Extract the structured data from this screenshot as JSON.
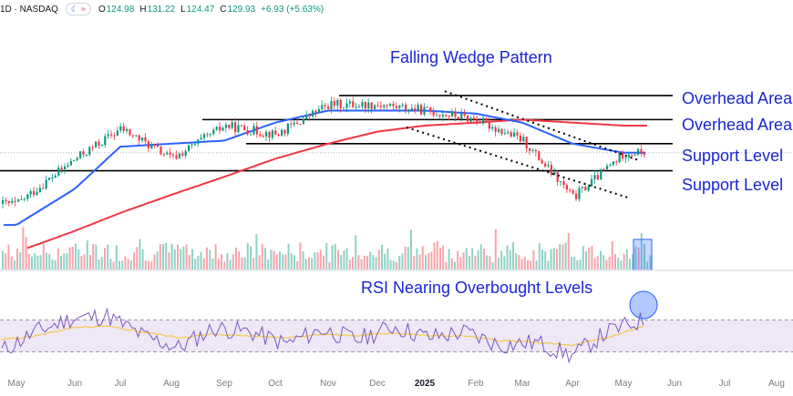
{
  "header": {
    "symbol": "1D · NASDAQ",
    "open_label": "O",
    "open": "124.98",
    "high_label": "H",
    "high": "131.22",
    "low_label": "L",
    "low": "124.47",
    "close_label": "C",
    "close": "129.93",
    "change": "+6.93 (+5.63%)",
    "toggle_icon_1": "moon-icon",
    "toggle_icon_2": "wave-icon"
  },
  "colors": {
    "up": "#089981",
    "down": "#f23645",
    "ma_fast": "#2962ff",
    "ma_slow": "#f23645",
    "annotation": "#1a25d6",
    "rsi": "#7e57c2",
    "rsi_ma": "#f7c948",
    "rsi_band": "#ede7f6"
  },
  "chart_data": [
    {
      "type": "candlestick",
      "title": "Falling Wedge Pattern",
      "x_ticks": [
        "May",
        "Jun",
        "Jul",
        "Aug",
        "Sep",
        "Oct",
        "Nov",
        "Dec",
        "2025",
        "Feb",
        "Mar",
        "Apr",
        "May",
        "Jun",
        "Jul",
        "Aug"
      ],
      "horizontal_levels": [
        {
          "label": "Overhead Area",
          "value": 149
        },
        {
          "label": "Overhead Area",
          "value": 141
        },
        {
          "label": "Support Level",
          "value": 133
        },
        {
          "label": "Support Level",
          "value": 124
        }
      ],
      "close_path": [
        [
          "May",
          113
        ],
        [
          "Jun",
          128
        ],
        [
          "Jul",
          138
        ],
        [
          "Aug",
          128
        ],
        [
          "Sep",
          139
        ],
        [
          "Oct",
          136
        ],
        [
          "Nov",
          146
        ],
        [
          "Dec",
          146
        ],
        [
          "2025",
          144
        ],
        [
          "Feb",
          141
        ],
        [
          "Mar",
          134
        ],
        [
          "Apr",
          115
        ],
        [
          "May",
          130
        ]
      ],
      "ma_fast": [
        [
          "May",
          106
        ],
        [
          "Jun",
          118
        ],
        [
          "Jul",
          132
        ],
        [
          "Aug",
          133
        ],
        [
          "Sep",
          134
        ],
        [
          "Oct",
          140
        ],
        [
          "Nov",
          144
        ],
        [
          "Dec",
          144
        ],
        [
          "2025",
          144
        ],
        [
          "Feb",
          143
        ],
        [
          "Mar",
          140
        ],
        [
          "Apr",
          133
        ],
        [
          "May",
          130
        ]
      ],
      "ma_slow": [
        [
          "May",
          97
        ],
        [
          "Jun",
          104
        ],
        [
          "Jul",
          110
        ],
        [
          "Aug",
          116
        ],
        [
          "Sep",
          122
        ],
        [
          "Oct",
          128
        ],
        [
          "Nov",
          133
        ],
        [
          "Dec",
          137
        ],
        [
          "2025",
          139
        ],
        [
          "Feb",
          140
        ],
        [
          "Mar",
          141
        ],
        [
          "Apr",
          140
        ],
        [
          "May",
          139
        ]
      ],
      "wedge_upper": [
        [
          "Dec",
          148
        ],
        [
          "May",
          130
        ]
      ],
      "wedge_lower": [
        [
          "Dec",
          139
        ],
        [
          "May",
          118
        ]
      ],
      "volume_note": "Volume histogram with highlighted recent bars"
    },
    {
      "type": "line",
      "title": "RSI Nearing Overbought Levels",
      "series": [
        {
          "values": [
            30,
            55,
            72,
            75,
            50,
            35,
            60,
            55,
            40,
            58,
            45,
            62,
            48,
            55,
            38,
            42,
            25,
            55,
            70
          ]
        },
        {
          "values": [
            45,
            50,
            60,
            62,
            55,
            48,
            52,
            50,
            48,
            52,
            50,
            54,
            50,
            50,
            44,
            42,
            38,
            48,
            62
          ]
        }
      ],
      "bands": [
        30,
        70
      ]
    }
  ]
}
